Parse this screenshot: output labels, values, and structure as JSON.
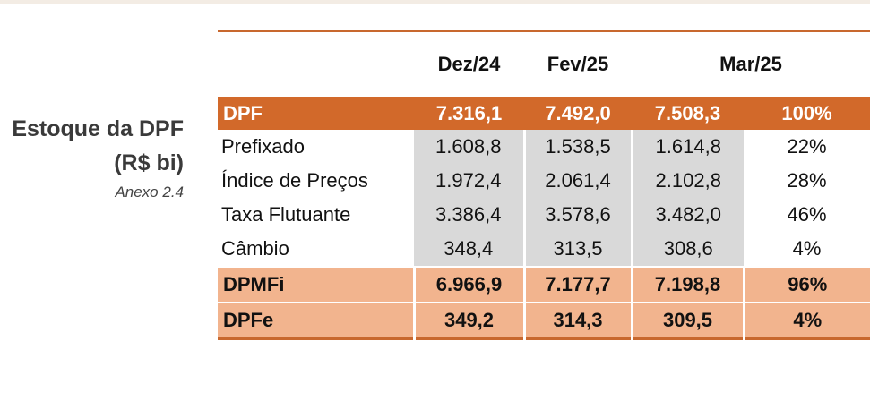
{
  "header": {
    "title": "Estoque da DPF",
    "unit": "(R$ bi)",
    "annex": "Anexo 2.4"
  },
  "table": {
    "columns": [
      "Dez/24",
      "Fev/25",
      "Mar/25"
    ],
    "rows": [
      [
        "DPF",
        "7.316,1",
        "7.492,0",
        "7.508,3",
        "100%"
      ],
      [
        "Prefixado",
        "1.608,8",
        "1.538,5",
        "1.614,8",
        "22%"
      ],
      [
        "Índice de Preços",
        "1.972,4",
        "2.061,4",
        "2.102,8",
        "28%"
      ],
      [
        "Taxa Flutuante",
        "3.386,4",
        "3.578,6",
        "3.482,0",
        "46%"
      ],
      [
        "Câmbio",
        "348,4",
        "313,5",
        "308,6",
        "4%"
      ],
      [
        "DPMFi",
        "6.966,9",
        "7.177,7",
        "7.198,8",
        "96%"
      ],
      [
        "DPFe",
        "349,2",
        "314,3",
        "309,5",
        "4%"
      ]
    ]
  }
}
